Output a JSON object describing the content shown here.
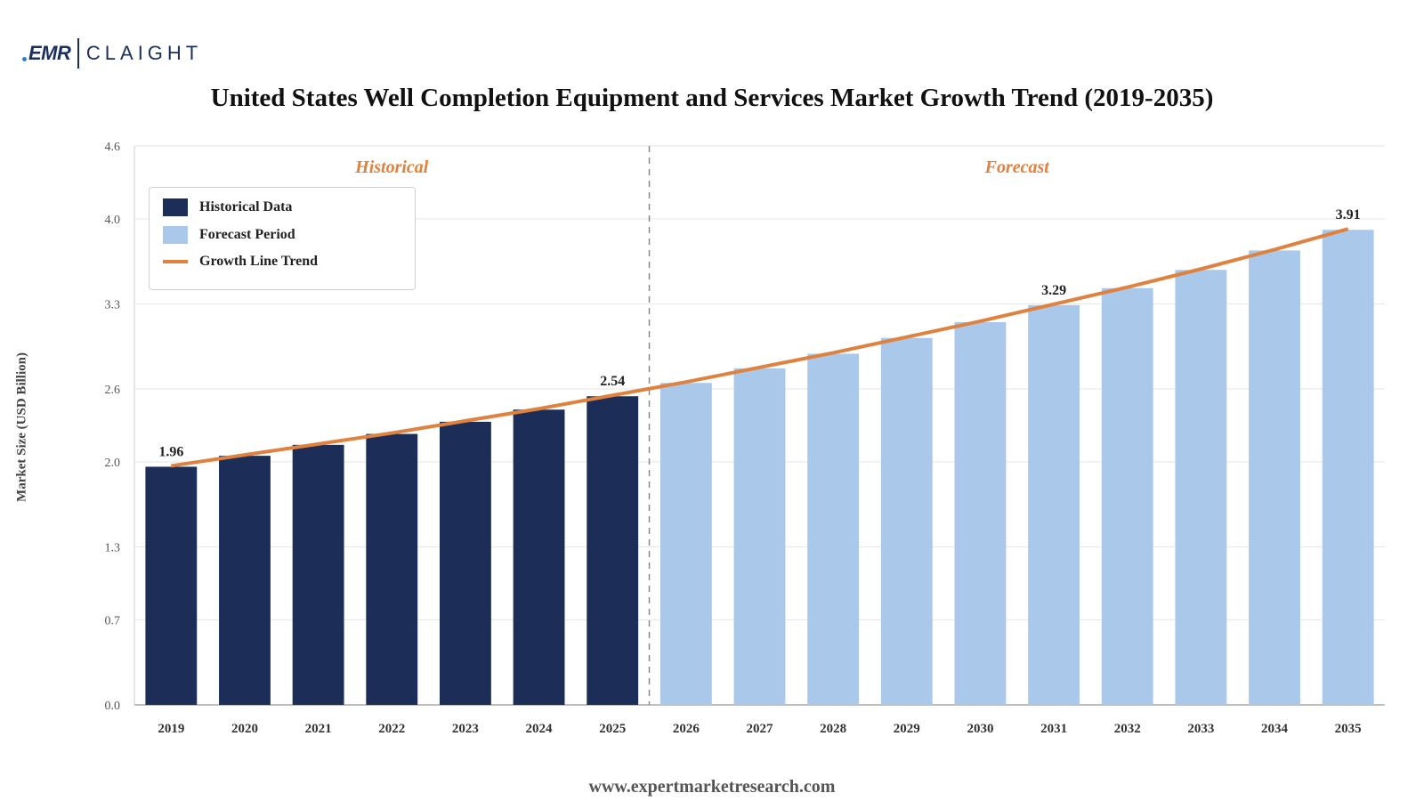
{
  "logo": {
    "mark": "EMR",
    "text": "CLAIGHT"
  },
  "title": "United States Well Completion Equipment and Services Market Growth Trend (2019-2035)",
  "footer": "www.expertmarketresearch.com",
  "legend": {
    "historical": "Historical Data",
    "forecast": "Forecast Period",
    "trend": "Growth Line Trend"
  },
  "colors": {
    "historical": "#1c2e58",
    "forecast": "#a9c8ea",
    "trend": "#e0823f",
    "region_label": "#e0823f"
  },
  "chart_data": {
    "type": "bar",
    "title": "United States Well Completion Equipment and Services Market Growth Trend (2019-2035)",
    "xlabel": "",
    "ylabel": "Market Size (USD Billion)",
    "ylim": [
      0,
      4.6
    ],
    "yticks": [
      "0.0",
      "0.7",
      "1.3",
      "2.0",
      "2.6",
      "3.3",
      "4.0",
      "4.6"
    ],
    "categories": [
      "2019",
      "2020",
      "2021",
      "2022",
      "2023",
      "2024",
      "2025",
      "2026",
      "2027",
      "2028",
      "2029",
      "2030",
      "2031",
      "2032",
      "2033",
      "2034",
      "2035"
    ],
    "series": [
      {
        "name": "Historical Data",
        "values": [
          1.96,
          2.05,
          2.14,
          2.23,
          2.33,
          2.43,
          2.54,
          null,
          null,
          null,
          null,
          null,
          null,
          null,
          null,
          null,
          null
        ]
      },
      {
        "name": "Forecast Period",
        "values": [
          null,
          null,
          null,
          null,
          null,
          null,
          null,
          2.65,
          2.77,
          2.89,
          3.02,
          3.15,
          3.29,
          3.43,
          3.58,
          3.74,
          3.91
        ]
      },
      {
        "name": "Growth Line Trend",
        "type": "line",
        "values": [
          1.96,
          2.05,
          2.14,
          2.23,
          2.33,
          2.43,
          2.54,
          2.65,
          2.77,
          2.89,
          3.02,
          3.15,
          3.29,
          3.43,
          3.58,
          3.74,
          3.91
        ]
      }
    ],
    "data_labels": [
      {
        "category": "2019",
        "text": "1.96"
      },
      {
        "category": "2025",
        "text": "2.54"
      },
      {
        "category": "2031",
        "text": "3.29"
      },
      {
        "category": "2035",
        "text": "3.91"
      }
    ],
    "regions": [
      {
        "label": "Historical",
        "from": "2019",
        "to": "2025"
      },
      {
        "label": "Forecast",
        "from": "2026",
        "to": "2035"
      }
    ],
    "grid": true,
    "legend_position": "top-left"
  }
}
